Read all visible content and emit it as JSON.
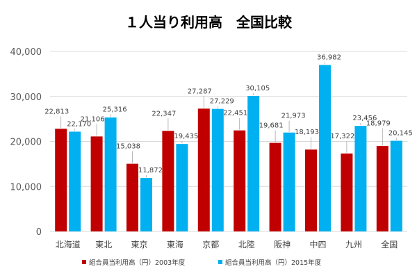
{
  "chart_data": {
    "type": "bar",
    "title": "１人当り利用高　全国比較",
    "categories": [
      "北海道",
      "東北",
      "東京",
      "東海",
      "京都",
      "北陸",
      "阪神",
      "中四",
      "九州",
      "全国"
    ],
    "series": [
      {
        "name": "組合員当利用高（円）2003年度",
        "color": "#c00000",
        "values": [
          22813,
          21106,
          15038,
          22347,
          27287,
          22451,
          19681,
          18193,
          17322,
          18979
        ],
        "labels": [
          "22,813",
          "21,106",
          "15,038",
          "22,347",
          "27,287",
          "22,451",
          "19,681",
          "18,193",
          "17,322",
          "18,979"
        ]
      },
      {
        "name": "組合員当利用高（円）2015年度",
        "color": "#00b0f0",
        "values": [
          22170,
          25316,
          11872,
          19435,
          27229,
          30105,
          21973,
          36982,
          23456,
          20145
        ],
        "labels": [
          "22,170",
          "25,316",
          "11,872",
          "19,435",
          "27,229",
          "30,105",
          "21,973",
          "36,982",
          "23,456",
          "20,145"
        ]
      }
    ],
    "ylim": [
      0,
      40000
    ],
    "yticks": [
      0,
      10000,
      20000,
      30000,
      40000
    ],
    "ytick_labels": [
      "0",
      "10,000",
      "20,000",
      "30,000",
      "40,000"
    ],
    "grid": true,
    "legend_position": "bottom"
  }
}
